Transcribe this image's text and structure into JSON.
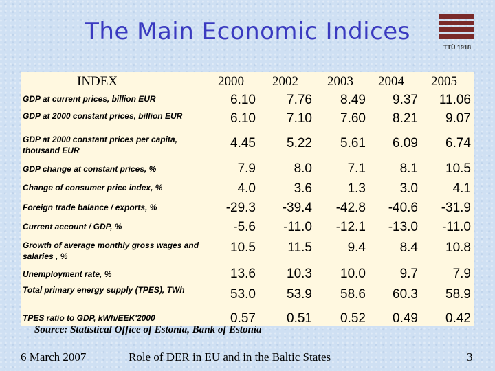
{
  "title": "The Main Economic Indices",
  "logo": {
    "text": "TTÜ 1918",
    "icon": "ttu-logo-icon"
  },
  "table": {
    "header": [
      "INDEX",
      "2000",
      "2002",
      "2003",
      "2004",
      "2005"
    ],
    "rows": [
      {
        "label": "GDP at current prices, billion EUR",
        "values": [
          "6.10",
          "7.76",
          "8.49",
          "9.37",
          "11.06"
        ]
      },
      {
        "label": "GDP at 2000 constant prices, billion EUR",
        "values": [
          "6.10",
          "7.10",
          "7.60",
          "8.21",
          "9.07"
        ]
      },
      {
        "label": "GDP at 2000 constant prices per capita, thousand  EUR",
        "values": [
          "4.45",
          "5.22",
          "5.61",
          "6.09",
          "6.74"
        ]
      },
      {
        "label": "GDP change at constant prices, %",
        "values": [
          "7.9",
          "8.0",
          "7.1",
          "8.1",
          "10.5"
        ]
      },
      {
        "label": "Change of consumer price index, %",
        "values": [
          "4.0",
          "3.6",
          "1.3",
          "3.0",
          "4.1"
        ]
      },
      {
        "label": "Foreign trade balance / exports,  %",
        "values": [
          "-29.3",
          "-39.4",
          "-42.8",
          "-40.6",
          "-31.9"
        ]
      },
      {
        "label": "Current account / GDP, %",
        "values": [
          "-5.6",
          "-11.0",
          "-12.1",
          "-13.0",
          "-11.0"
        ]
      },
      {
        "label": "Growth of average monthly gross wages and salaries , %",
        "values": [
          "10.5",
          "11.5",
          "9.4",
          "8.4",
          "10.8"
        ]
      },
      {
        "label": "Unemployment rate, %",
        "values": [
          "13.6",
          "10.3",
          "10.0",
          "9.7",
          "7.9"
        ]
      },
      {
        "label": "Total primary energy supply (TPES), TWh",
        "values": [
          "53.0",
          "53.9",
          "58.6",
          "60.3",
          "58.9"
        ]
      },
      {
        "label": "TPES ratio to GDP, kWh/EEK'2000",
        "values": [
          "0.57",
          "0.51",
          "0.52",
          "0.49",
          "0.42"
        ]
      }
    ]
  },
  "source": "Source: Statistical Office of Estonia, Bank of Estonia",
  "footer": {
    "date": "6 March 2007",
    "center": "Role of DER in EU and in the Baltic States",
    "page": "3"
  }
}
